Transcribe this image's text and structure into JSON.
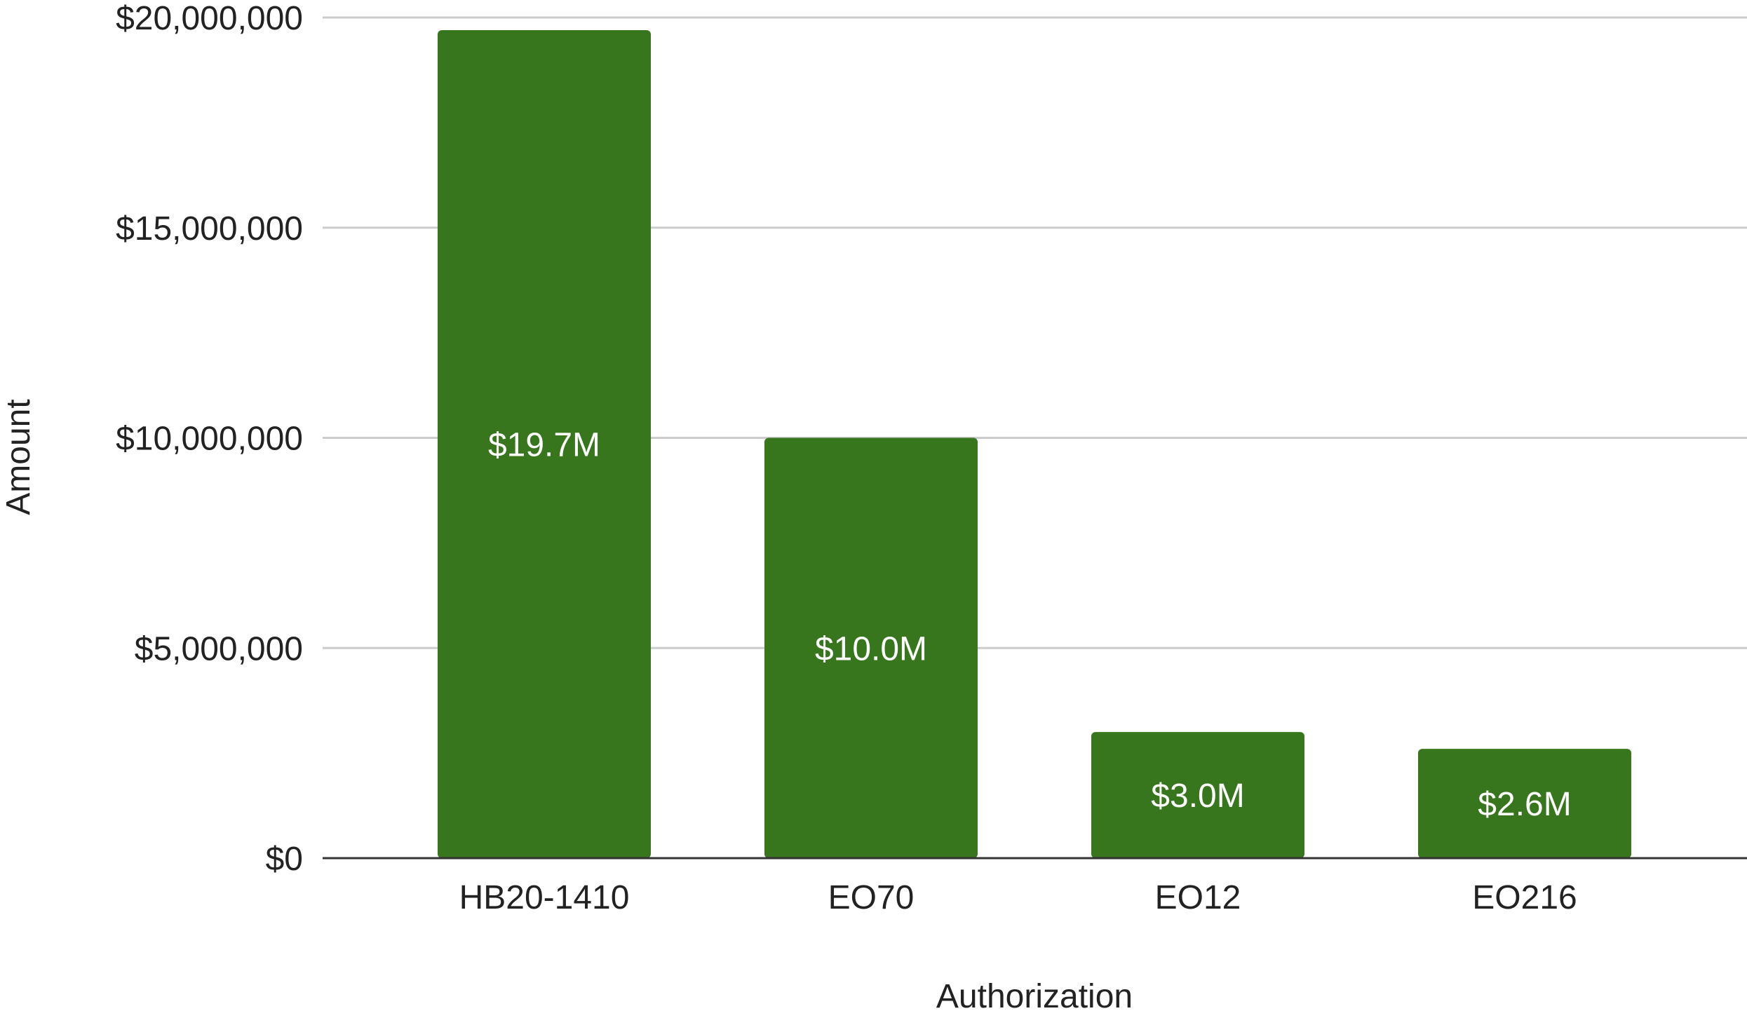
{
  "chart_data": {
    "type": "bar",
    "title": "",
    "xlabel": "Authorization",
    "ylabel": "Amount",
    "categories": [
      "HB20-1410",
      "EO70",
      "EO12",
      "EO216"
    ],
    "series": [
      {
        "values": [
          19700000,
          10000000,
          3000000,
          2600000
        ],
        "data_labels": [
          "$19.7M",
          "$10.0M",
          "$3.0M",
          "$2.6M"
        ],
        "color": "#38761d"
      }
    ],
    "ylim": [
      0,
      20000000
    ],
    "yticks": [
      0,
      5000000,
      10000000,
      15000000,
      20000000
    ],
    "ytick_labels": [
      "$0",
      "$5,000,000",
      "$10,000,000",
      "$15,000,000",
      "$20,000,000"
    ],
    "grid": true,
    "legend": "none",
    "colors": {
      "bar": "#38761d",
      "grid": "#cccccc",
      "axis": "#333333"
    }
  }
}
